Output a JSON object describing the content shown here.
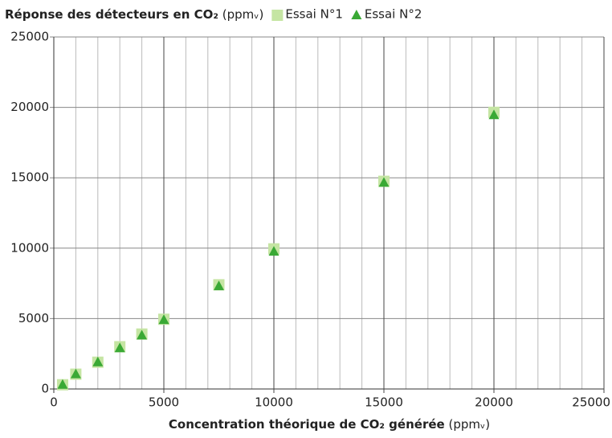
{
  "chart_data": {
    "type": "scatter",
    "title": "Réponse des détecteurs en CO₂",
    "title_unit": "(ppmᵥ)",
    "xlabel": "Concentration théorique de CO₂ générée",
    "xlabel_unit": "(ppmᵥ)",
    "x": [
      400,
      1000,
      2000,
      3000,
      4000,
      5000,
      7500,
      10000,
      15000,
      20000
    ],
    "series": [
      {
        "name": "Essai N°1",
        "color": "#c5e5a3",
        "marker": "square",
        "values": [
          300,
          1050,
          1900,
          3000,
          3900,
          4950,
          7400,
          9950,
          14750,
          19650
        ]
      },
      {
        "name": "Essai N°2",
        "color": "#3aa935",
        "marker": "triangle",
        "values": [
          300,
          1050,
          1900,
          2900,
          3800,
          4900,
          7300,
          9750,
          14650,
          19450
        ]
      }
    ],
    "xlim": [
      0,
      25000
    ],
    "xticks": [
      0,
      5000,
      10000,
      15000,
      20000,
      25000
    ],
    "ylim": [
      0,
      25000
    ],
    "yticks": [
      0,
      5000,
      10000,
      15000,
      20000,
      25000
    ],
    "grid": true,
    "x_minor_divisions": 5
  }
}
